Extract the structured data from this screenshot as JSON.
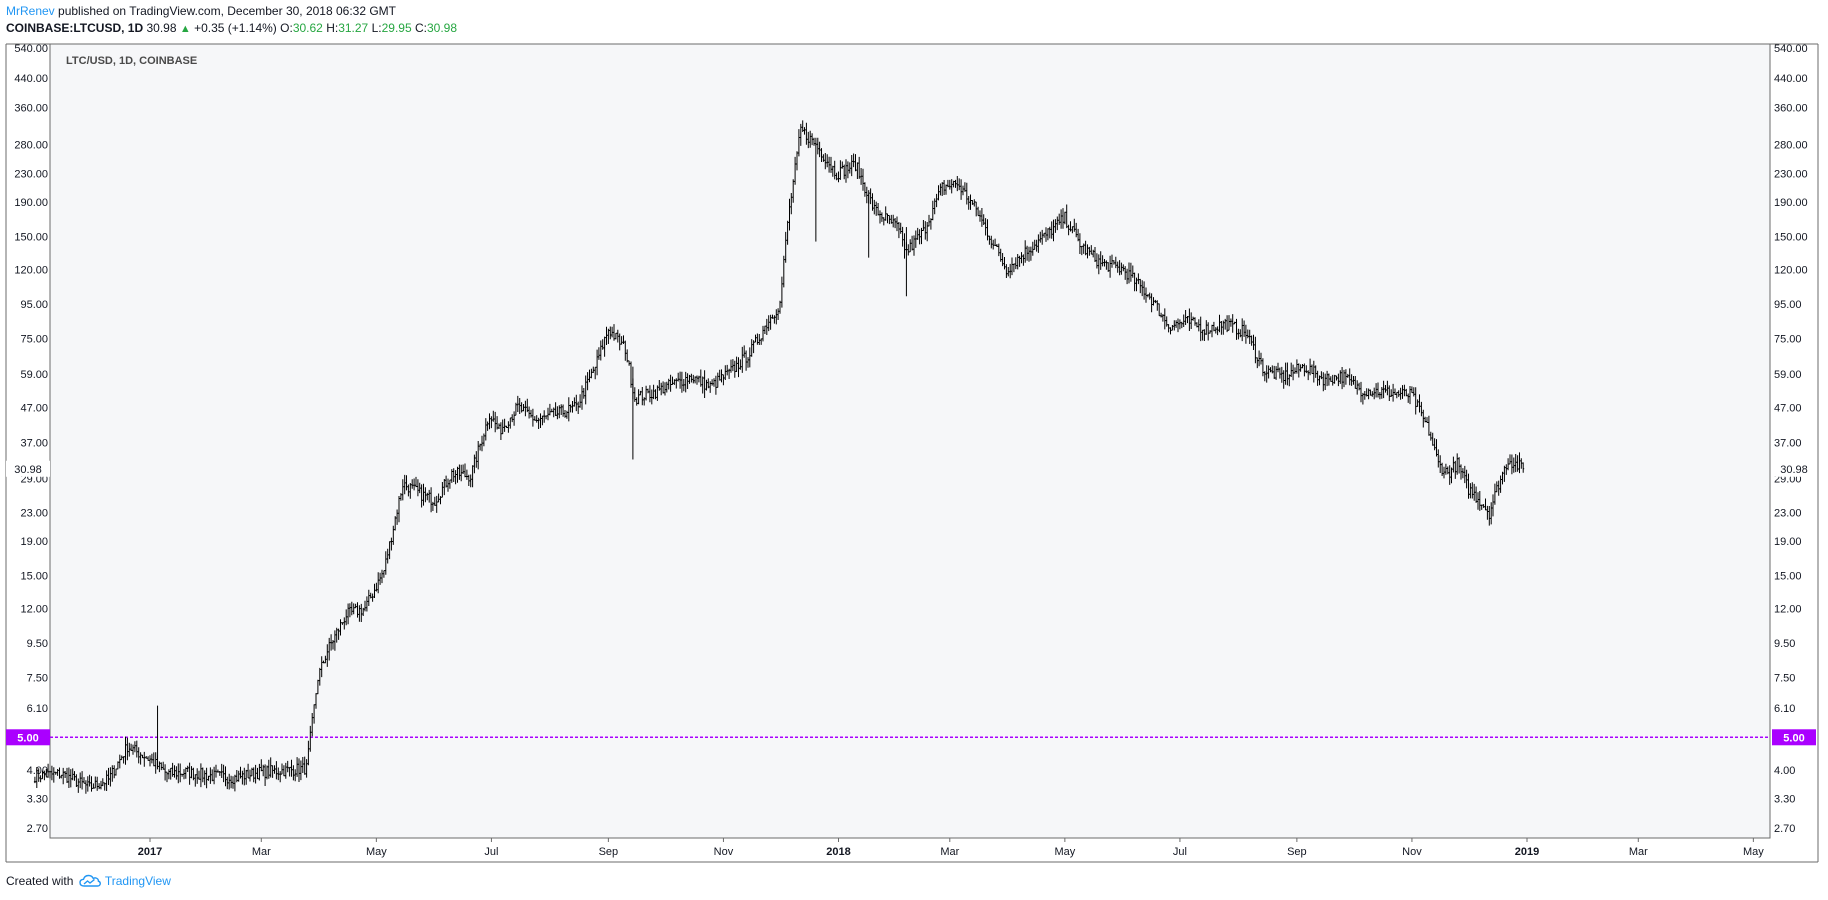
{
  "header": {
    "author": "MrRenev",
    "published": "published on TradingView.com, December 30, 2018 06:32 GMT",
    "symbol": "COINBASE:LTCUSD, 1D",
    "last": "30.98",
    "change": "+0.35 (+1.14%)",
    "o_label": "O:",
    "o_value": "30.62",
    "h_label": "H:",
    "h_value": "31.27",
    "l_label": "L:",
    "l_value": "29.95",
    "c_label": "C:",
    "c_value": "30.98"
  },
  "footer": {
    "created_with": "Created with",
    "brand": "TradingView"
  },
  "colors": {
    "accent": "#2196f3",
    "up": "#26a641",
    "hline": "#aa00ff",
    "pane_bg": "#f6f7f9",
    "candle": "#000000"
  },
  "chart_data": {
    "type": "line",
    "title": "LTC/USD, 1D, COINBASE",
    "scale": "log",
    "y_ticks": [
      "540.00",
      "440.00",
      "360.00",
      "280.00",
      "230.00",
      "190.00",
      "150.00",
      "120.00",
      "95.00",
      "75.00",
      "59.00",
      "47.00",
      "37.00",
      "29.00",
      "23.00",
      "19.00",
      "15.00",
      "12.00",
      "9.50",
      "7.50",
      "6.10",
      "5.00",
      "4.00",
      "3.30",
      "2.70"
    ],
    "x_ticks": [
      {
        "label": "2017",
        "bold": true
      },
      {
        "label": "Mar",
        "bold": false
      },
      {
        "label": "May",
        "bold": false
      },
      {
        "label": "Jul",
        "bold": false
      },
      {
        "label": "Sep",
        "bold": false
      },
      {
        "label": "Nov",
        "bold": false
      },
      {
        "label": "2018",
        "bold": true
      },
      {
        "label": "Mar",
        "bold": false
      },
      {
        "label": "May",
        "bold": false
      },
      {
        "label": "Jul",
        "bold": false
      },
      {
        "label": "Sep",
        "bold": false
      },
      {
        "label": "Nov",
        "bold": false
      },
      {
        "label": "2019",
        "bold": true
      },
      {
        "label": "Mar",
        "bold": false
      },
      {
        "label": "May",
        "bold": false
      }
    ],
    "last_price": "30.98",
    "horizontal_line": "5.00",
    "series": [
      {
        "dates": [
          "2016-11-01",
          "2016-11-15",
          "2016-11-30",
          "2016-12-10",
          "2016-12-20",
          "2017-01-01",
          "2017-01-10",
          "2017-01-20",
          "2017-02-01",
          "2017-02-15",
          "2017-03-01",
          "2017-03-15",
          "2017-03-25",
          "2017-03-31",
          "2017-04-05",
          "2017-04-15",
          "2017-04-25",
          "2017-05-05",
          "2017-05-15",
          "2017-05-25",
          "2017-06-01",
          "2017-06-10",
          "2017-06-20",
          "2017-06-30",
          "2017-07-05",
          "2017-07-15",
          "2017-07-25",
          "2017-08-05",
          "2017-08-15",
          "2017-08-25",
          "2017-09-01",
          "2017-09-10",
          "2017-09-15",
          "2017-09-25",
          "2017-10-05",
          "2017-10-15",
          "2017-10-25",
          "2017-11-05",
          "2017-11-15",
          "2017-11-25",
          "2017-12-01",
          "2017-12-05",
          "2017-12-12",
          "2017-12-20",
          "2017-12-31",
          "2018-01-10",
          "2018-01-20",
          "2018-02-01",
          "2018-02-06",
          "2018-02-15",
          "2018-02-25",
          "2018-03-05",
          "2018-03-15",
          "2018-03-31",
          "2018-04-10",
          "2018-04-20",
          "2018-05-01",
          "2018-05-10",
          "2018-05-20",
          "2018-06-01",
          "2018-06-15",
          "2018-06-25",
          "2018-07-05",
          "2018-07-15",
          "2018-07-25",
          "2018-08-05",
          "2018-08-15",
          "2018-08-25",
          "2018-09-05",
          "2018-09-15",
          "2018-09-25",
          "2018-10-05",
          "2018-10-20",
          "2018-11-01",
          "2018-11-10",
          "2018-11-15",
          "2018-11-20",
          "2018-11-25",
          "2018-12-01",
          "2018-12-07",
          "2018-12-12",
          "2018-12-17",
          "2018-12-22",
          "2018-12-30"
        ],
        "close": [
          3.85,
          3.9,
          3.55,
          3.75,
          4.7,
          4.3,
          3.9,
          3.95,
          3.85,
          3.8,
          3.95,
          4.0,
          4.05,
          7.5,
          9.0,
          11.5,
          12.0,
          15.5,
          28.0,
          26.0,
          25.0,
          30.0,
          29.5,
          45.0,
          40.0,
          47.0,
          43.0,
          45.0,
          47.0,
          62.0,
          80.0,
          70.0,
          50.0,
          52.0,
          55.0,
          58.0,
          54.0,
          60.0,
          68.0,
          85.0,
          95.0,
          165.0,
          310.0,
          280.0,
          230.0,
          245.0,
          180.0,
          160.0,
          135.0,
          155.0,
          210.0,
          215.0,
          180.0,
          120.0,
          135.0,
          150.0,
          170.0,
          140.0,
          125.0,
          120.0,
          100.0,
          82.0,
          84.0,
          80.0,
          83.0,
          78.0,
          60.0,
          58.0,
          62.0,
          57.0,
          58.0,
          53.0,
          52.0,
          51.0,
          40.0,
          32.0,
          30.0,
          32.0,
          27.0,
          25.0,
          23.0,
          28.0,
          33.0,
          30.98
        ]
      }
    ]
  }
}
